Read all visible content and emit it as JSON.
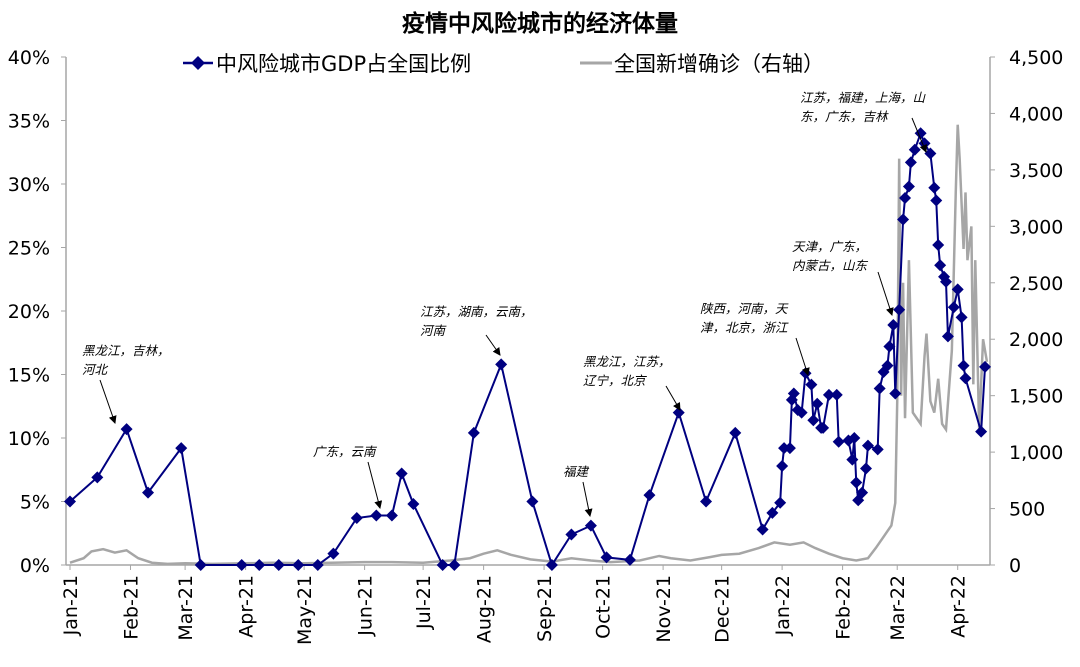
{
  "chart_data": {
    "type": "line",
    "title": "疫情中风险城市的经济体量",
    "x_tick_labels": [
      "Jan-21",
      "Feb-21",
      "Mar-21",
      "Apr-21",
      "May-21",
      "Jun-21",
      "Jul-21",
      "Aug-21",
      "Sep-21",
      "Oct-21",
      "Nov-21",
      "Dec-21",
      "Jan-22",
      "Feb-22",
      "Mar-22",
      "Apr-22"
    ],
    "x_tick_dates": [
      "2021-01-01",
      "2021-02-01",
      "2021-03-01",
      "2021-04-01",
      "2021-05-01",
      "2021-06-01",
      "2021-07-01",
      "2021-08-01",
      "2021-09-01",
      "2021-10-01",
      "2021-11-01",
      "2021-12-01",
      "2022-01-01",
      "2022-02-01",
      "2022-03-01",
      "2022-04-01"
    ],
    "xlim": [
      "2021-01-01",
      "2022-04-17"
    ],
    "y_left": {
      "ylim": [
        0,
        40
      ],
      "ticks": [
        0,
        5,
        10,
        15,
        20,
        25,
        30,
        35,
        40
      ],
      "tick_labels": [
        "0%",
        "5%",
        "10%",
        "15%",
        "20%",
        "25%",
        "30%",
        "35%",
        "40%"
      ]
    },
    "y_right": {
      "ylim": [
        0,
        4500
      ],
      "ticks": [
        0,
        500,
        1000,
        1500,
        2000,
        2500,
        3000,
        3500,
        4000,
        4500
      ],
      "tick_labels": [
        "0",
        "500",
        "1,000",
        "1,500",
        "2,000",
        "2,500",
        "3,000",
        "3,500",
        "4,000",
        "4,500"
      ]
    },
    "grid": false,
    "legend_position": "top",
    "colors": {
      "gdp": "#000080",
      "cases": "#a6a6a6"
    },
    "series": [
      {
        "name": "中风险城市GDP占全国比例",
        "axis": "left",
        "marker": "diamond",
        "points": [
          [
            "2021-01-01",
            5.0
          ],
          [
            "2021-01-15",
            6.9
          ],
          [
            "2021-01-30",
            10.7
          ],
          [
            "2021-02-10",
            5.7
          ],
          [
            "2021-02-27",
            9.2
          ],
          [
            "2021-03-09",
            0
          ],
          [
            "2021-03-30",
            0
          ],
          [
            "2021-04-08",
            0
          ],
          [
            "2021-04-18",
            0
          ],
          [
            "2021-04-28",
            0
          ],
          [
            "2021-05-08",
            0
          ],
          [
            "2021-05-16",
            0.9
          ],
          [
            "2021-05-28",
            3.7
          ],
          [
            "2021-06-07",
            3.9
          ],
          [
            "2021-06-15",
            3.9
          ],
          [
            "2021-06-20",
            7.2
          ],
          [
            "2021-06-26",
            4.8
          ],
          [
            "2021-07-11",
            0
          ],
          [
            "2021-07-17",
            0
          ],
          [
            "2021-07-27",
            10.4
          ],
          [
            "2021-08-10",
            15.8
          ],
          [
            "2021-08-26",
            5.0
          ],
          [
            "2021-09-05",
            0
          ],
          [
            "2021-09-15",
            2.4
          ],
          [
            "2021-09-25",
            3.1
          ],
          [
            "2021-10-03",
            0.6
          ],
          [
            "2021-10-15",
            0.4
          ],
          [
            "2021-10-25",
            5.5
          ],
          [
            "2021-11-09",
            12.0
          ],
          [
            "2021-11-23",
            5.0
          ],
          [
            "2021-12-08",
            10.4
          ],
          [
            "2021-12-22",
            2.8
          ],
          [
            "2021-12-27",
            4.1
          ],
          [
            "2021-12-31",
            4.9
          ],
          [
            "2022-01-01",
            7.8
          ],
          [
            "2022-01-02",
            9.2
          ],
          [
            "2022-01-05",
            9.2
          ],
          [
            "2022-01-06",
            13.0
          ],
          [
            "2022-01-07",
            13.5
          ],
          [
            "2022-01-09",
            12.2
          ],
          [
            "2022-01-11",
            12.0
          ],
          [
            "2022-01-13",
            15.1
          ],
          [
            "2022-01-16",
            14.2
          ],
          [
            "2022-01-17",
            11.4
          ],
          [
            "2022-01-19",
            12.7
          ],
          [
            "2022-01-21",
            10.8
          ],
          [
            "2022-01-22",
            10.8
          ],
          [
            "2022-01-25",
            13.4
          ],
          [
            "2022-01-29",
            13.4
          ],
          [
            "2022-01-30",
            9.7
          ],
          [
            "2022-02-04",
            9.8
          ],
          [
            "2022-02-06",
            8.3
          ],
          [
            "2022-02-07",
            10.0
          ],
          [
            "2022-02-08",
            6.5
          ],
          [
            "2022-02-09",
            5.1
          ],
          [
            "2022-02-11",
            5.7
          ],
          [
            "2022-02-13",
            7.6
          ],
          [
            "2022-02-14",
            9.4
          ],
          [
            "2022-02-19",
            9.1
          ],
          [
            "2022-02-20",
            13.9
          ],
          [
            "2022-02-22",
            15.2
          ],
          [
            "2022-02-24",
            15.7
          ],
          [
            "2022-02-25",
            17.2
          ],
          [
            "2022-02-27",
            18.9
          ],
          [
            "2022-02-28",
            13.5
          ],
          [
            "2022-03-02",
            20.1
          ],
          [
            "2022-03-04",
            27.2
          ],
          [
            "2022-03-05",
            28.9
          ],
          [
            "2022-03-07",
            29.8
          ],
          [
            "2022-03-08",
            31.7
          ],
          [
            "2022-03-10",
            32.7
          ],
          [
            "2022-03-13",
            34.0
          ],
          [
            "2022-03-15",
            33.2
          ],
          [
            "2022-03-18",
            32.4
          ],
          [
            "2022-03-20",
            29.7
          ],
          [
            "2022-03-21",
            28.7
          ],
          [
            "2022-03-22",
            25.2
          ],
          [
            "2022-03-23",
            23.6
          ],
          [
            "2022-03-25",
            22.7
          ],
          [
            "2022-03-26",
            22.3
          ],
          [
            "2022-03-27",
            18.0
          ],
          [
            "2022-03-30",
            20.3
          ],
          [
            "2022-04-01",
            21.7
          ],
          [
            "2022-04-03",
            19.5
          ],
          [
            "2022-04-04",
            15.7
          ],
          [
            "2022-04-05",
            14.7
          ],
          [
            "2022-04-13",
            10.5
          ],
          [
            "2022-04-15",
            15.6
          ]
        ]
      },
      {
        "name": "全国新增确诊（右轴）",
        "axis": "right",
        "marker": "none",
        "points": [
          [
            "2021-01-01",
            20
          ],
          [
            "2021-01-08",
            60
          ],
          [
            "2021-01-12",
            120
          ],
          [
            "2021-01-18",
            140
          ],
          [
            "2021-01-24",
            110
          ],
          [
            "2021-01-30",
            130
          ],
          [
            "2021-02-05",
            60
          ],
          [
            "2021-02-12",
            20
          ],
          [
            "2021-02-20",
            10
          ],
          [
            "2021-03-01",
            15
          ],
          [
            "2021-03-15",
            10
          ],
          [
            "2021-04-01",
            15
          ],
          [
            "2021-04-15",
            20
          ],
          [
            "2021-05-01",
            15
          ],
          [
            "2021-05-15",
            20
          ],
          [
            "2021-06-01",
            25
          ],
          [
            "2021-06-15",
            25
          ],
          [
            "2021-07-01",
            20
          ],
          [
            "2021-07-15",
            40
          ],
          [
            "2021-07-25",
            60
          ],
          [
            "2021-08-01",
            100
          ],
          [
            "2021-08-08",
            130
          ],
          [
            "2021-08-15",
            90
          ],
          [
            "2021-08-25",
            50
          ],
          [
            "2021-09-05",
            30
          ],
          [
            "2021-09-15",
            60
          ],
          [
            "2021-09-25",
            40
          ],
          [
            "2021-10-05",
            25
          ],
          [
            "2021-10-20",
            40
          ],
          [
            "2021-10-30",
            80
          ],
          [
            "2021-11-05",
            60
          ],
          [
            "2021-11-15",
            40
          ],
          [
            "2021-11-25",
            70
          ],
          [
            "2021-12-01",
            90
          ],
          [
            "2021-12-10",
            100
          ],
          [
            "2021-12-20",
            150
          ],
          [
            "2021-12-28",
            200
          ],
          [
            "2022-01-05",
            180
          ],
          [
            "2022-01-12",
            200
          ],
          [
            "2022-01-18",
            150
          ],
          [
            "2022-01-25",
            100
          ],
          [
            "2022-02-01",
            60
          ],
          [
            "2022-02-08",
            40
          ],
          [
            "2022-02-14",
            60
          ],
          [
            "2022-02-18",
            150
          ],
          [
            "2022-02-22",
            250
          ],
          [
            "2022-02-26",
            350
          ],
          [
            "2022-02-28",
            550
          ],
          [
            "2022-03-01",
            1450
          ],
          [
            "2022-03-02",
            3600
          ],
          [
            "2022-03-03",
            1500
          ],
          [
            "2022-03-04",
            2500
          ],
          [
            "2022-03-05",
            1300
          ],
          [
            "2022-03-07",
            2700
          ],
          [
            "2022-03-09",
            1350
          ],
          [
            "2022-03-11",
            1300
          ],
          [
            "2022-03-13",
            1250
          ],
          [
            "2022-03-15",
            1850
          ],
          [
            "2022-03-16",
            2050
          ],
          [
            "2022-03-18",
            1450
          ],
          [
            "2022-03-20",
            1350
          ],
          [
            "2022-03-22",
            1650
          ],
          [
            "2022-03-24",
            1250
          ],
          [
            "2022-03-26",
            1200
          ],
          [
            "2022-03-29",
            1900
          ],
          [
            "2022-03-31",
            3300
          ],
          [
            "2022-04-01",
            3900
          ],
          [
            "2022-04-02",
            3600
          ],
          [
            "2022-04-04",
            2800
          ],
          [
            "2022-04-05",
            3300
          ],
          [
            "2022-04-06",
            2700
          ],
          [
            "2022-04-08",
            3000
          ],
          [
            "2022-04-09",
            1600
          ],
          [
            "2022-04-10",
            2700
          ],
          [
            "2022-04-12",
            1200
          ],
          [
            "2022-04-14",
            2000
          ],
          [
            "2022-04-16",
            1800
          ]
        ]
      }
    ],
    "annotations": [
      {
        "lines": [
          "黑龙江，吉林，",
          "河北"
        ]
      },
      {
        "lines": [
          "广东，云南"
        ]
      },
      {
        "lines": [
          "江苏，湖南，云南，",
          "河南"
        ]
      },
      {
        "lines": [
          "福建"
        ]
      },
      {
        "lines": [
          "黑龙江，江苏，",
          "辽宁，北京"
        ]
      },
      {
        "lines": [
          "陕西，河南，天",
          "津，北京，浙江"
        ]
      },
      {
        "lines": [
          "天津，广东，",
          "内蒙古，山东"
        ]
      },
      {
        "lines": [
          "江苏，福建，上海，山",
          "东，广东，吉林"
        ]
      }
    ]
  }
}
